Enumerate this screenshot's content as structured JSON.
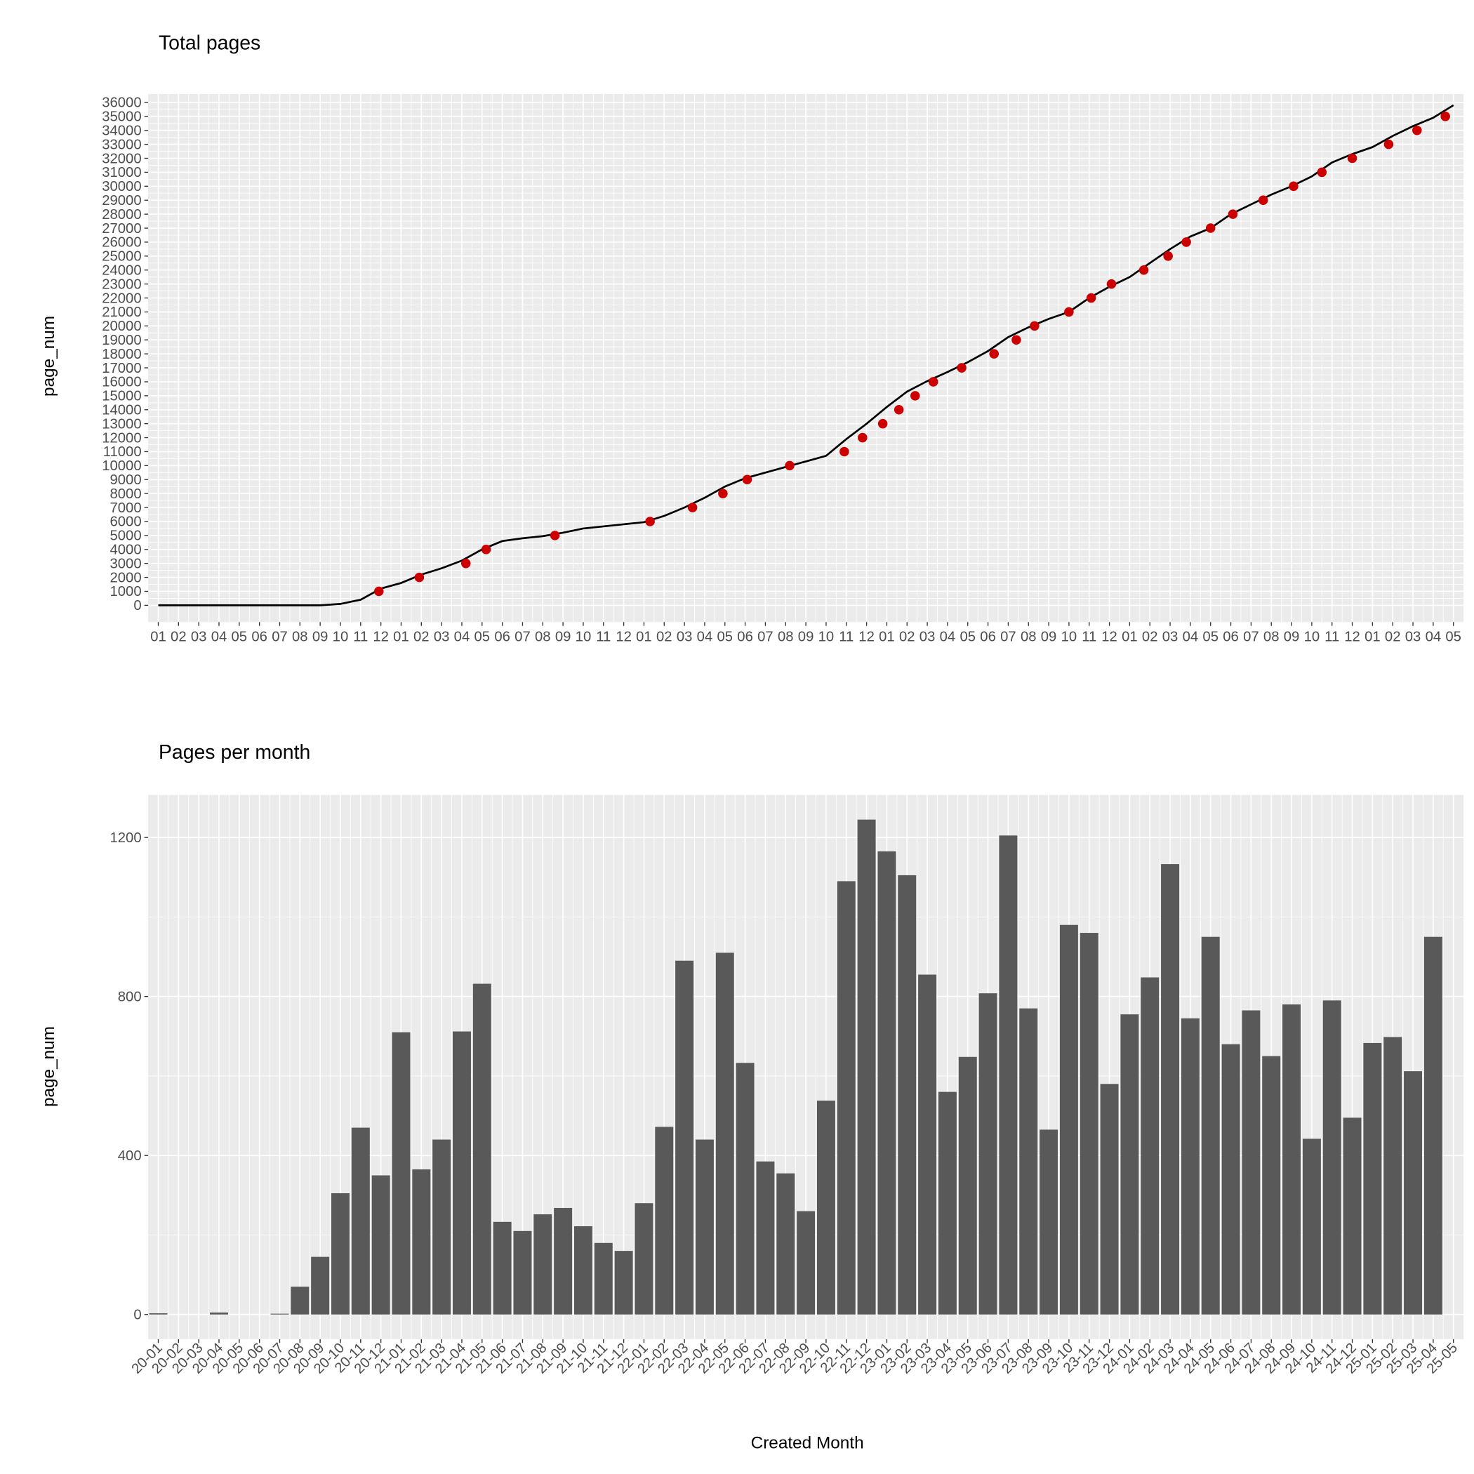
{
  "chart_data": [
    {
      "type": "line",
      "title": "Total pages",
      "y_label": "page_num",
      "color": "#000000",
      "x": [
        0,
        1,
        2,
        3,
        4,
        5,
        6,
        7,
        8,
        9,
        10,
        11,
        12,
        13,
        14,
        15,
        16,
        17,
        18,
        19,
        20,
        21,
        22,
        23,
        24,
        25,
        26,
        27,
        28,
        29,
        30,
        31,
        32,
        33,
        34,
        35,
        36,
        37,
        38,
        39,
        40,
        41,
        42,
        43,
        44,
        45,
        46,
        47,
        48,
        49,
        50,
        51,
        52,
        53,
        54,
        55,
        56,
        57,
        58,
        59,
        60,
        61,
        62,
        63,
        64
      ],
      "values": [
        0,
        0,
        0,
        0,
        0,
        0,
        0,
        0,
        0,
        100,
        400,
        1200,
        1600,
        2200,
        2650,
        3200,
        4000,
        4600,
        4800,
        4950,
        5200,
        5500,
        5650,
        5800,
        5950,
        6400,
        7000,
        7700,
        8500,
        9100,
        9500,
        9900,
        10300,
        10700,
        11900,
        13000,
        14200,
        15300,
        16050,
        16700,
        17400,
        18200,
        19200,
        19900,
        20500,
        21000,
        22000,
        22800,
        23500,
        24500,
        25500,
        26400,
        27000,
        28000,
        28700,
        29400,
        30000,
        30700,
        31700,
        32300,
        32800,
        33600,
        34300,
        34900,
        35800
      ],
      "points": {
        "color": "#cc0000",
        "x": [
          10.9,
          12.9,
          15.2,
          16.2,
          19.6,
          24.3,
          26.4,
          27.9,
          29.1,
          31.2,
          33.9,
          34.8,
          35.8,
          36.6,
          37.4,
          38.3,
          39.7,
          41.3,
          42.4,
          43.3,
          45.0,
          46.1,
          47.1,
          48.7,
          49.9,
          50.8,
          52.0,
          53.1,
          54.6,
          56.1,
          57.5,
          59.0,
          60.8,
          62.2,
          63.6
        ],
        "values": [
          1000,
          2000,
          3000,
          4000,
          5000,
          6000,
          7000,
          8000,
          9000,
          10000,
          11000,
          12000,
          13000,
          14000,
          15000,
          16000,
          17000,
          18000,
          19000,
          20000,
          21000,
          22000,
          23000,
          24000,
          25000,
          26000,
          27000,
          28000,
          29000,
          30000,
          31000,
          32000,
          33000,
          34000,
          35000
        ]
      },
      "xlim": [
        -0.5,
        64.5
      ],
      "xticks": [
        {
          "value": 0,
          "label": "01"
        },
        {
          "value": 1,
          "label": "02"
        },
        {
          "value": 2,
          "label": "03"
        },
        {
          "value": 3,
          "label": "04"
        },
        {
          "value": 4,
          "label": "05"
        },
        {
          "value": 5,
          "label": "06"
        },
        {
          "value": 6,
          "label": "07"
        },
        {
          "value": 7,
          "label": "08"
        },
        {
          "value": 8,
          "label": "09"
        },
        {
          "value": 9,
          "label": "10"
        },
        {
          "value": 10,
          "label": "11"
        },
        {
          "value": 11,
          "label": "12"
        },
        {
          "value": 12,
          "label": "01"
        },
        {
          "value": 13,
          "label": "02"
        },
        {
          "value": 14,
          "label": "03"
        },
        {
          "value": 15,
          "label": "04"
        },
        {
          "value": 16,
          "label": "05"
        },
        {
          "value": 17,
          "label": "06"
        },
        {
          "value": 18,
          "label": "07"
        },
        {
          "value": 19,
          "label": "08"
        },
        {
          "value": 20,
          "label": "09"
        },
        {
          "value": 21,
          "label": "10"
        },
        {
          "value": 22,
          "label": "11"
        },
        {
          "value": 23,
          "label": "12"
        },
        {
          "value": 24,
          "label": "01"
        },
        {
          "value": 25,
          "label": "02"
        },
        {
          "value": 26,
          "label": "03"
        },
        {
          "value": 27,
          "label": "04"
        },
        {
          "value": 28,
          "label": "05"
        },
        {
          "value": 29,
          "label": "06"
        },
        {
          "value": 30,
          "label": "07"
        },
        {
          "value": 31,
          "label": "08"
        },
        {
          "value": 32,
          "label": "09"
        },
        {
          "value": 33,
          "label": "10"
        },
        {
          "value": 34,
          "label": "11"
        },
        {
          "value": 35,
          "label": "12"
        },
        {
          "value": 36,
          "label": "01"
        },
        {
          "value": 37,
          "label": "02"
        },
        {
          "value": 38,
          "label": "03"
        },
        {
          "value": 39,
          "label": "04"
        },
        {
          "value": 40,
          "label": "05"
        },
        {
          "value": 41,
          "label": "06"
        },
        {
          "value": 42,
          "label": "07"
        },
        {
          "value": 43,
          "label": "08"
        },
        {
          "value": 44,
          "label": "09"
        },
        {
          "value": 45,
          "label": "10"
        },
        {
          "value": 46,
          "label": "11"
        },
        {
          "value": 47,
          "label": "12"
        },
        {
          "value": 48,
          "label": "01"
        },
        {
          "value": 49,
          "label": "02"
        },
        {
          "value": 50,
          "label": "03"
        },
        {
          "value": 51,
          "label": "04"
        },
        {
          "value": 52,
          "label": "05"
        },
        {
          "value": 53,
          "label": "06"
        },
        {
          "value": 54,
          "label": "07"
        },
        {
          "value": 55,
          "label": "08"
        },
        {
          "value": 56,
          "label": "09"
        },
        {
          "value": 57,
          "label": "10"
        },
        {
          "value": 58,
          "label": "11"
        },
        {
          "value": 59,
          "label": "12"
        },
        {
          "value": 60,
          "label": "01"
        },
        {
          "value": 61,
          "label": "02"
        },
        {
          "value": 62,
          "label": "03"
        },
        {
          "value": 63,
          "label": "04"
        },
        {
          "value": 64,
          "label": "05"
        }
      ],
      "ylim": [
        -1200,
        36600
      ],
      "yticks": [
        0,
        1000,
        2000,
        3000,
        4000,
        5000,
        6000,
        7000,
        8000,
        9000,
        10000,
        11000,
        12000,
        13000,
        14000,
        15000,
        16000,
        17000,
        18000,
        19000,
        20000,
        21000,
        22000,
        23000,
        24000,
        25000,
        26000,
        27000,
        28000,
        29000,
        30000,
        31000,
        32000,
        33000,
        34000,
        35000,
        36000
      ],
      "grid": true
    },
    {
      "type": "bar",
      "title": "Pages per month",
      "x_label": "Created Month",
      "y_label": "page_num",
      "color": "#595959",
      "categories": [
        "20-01",
        "20-02",
        "20-03",
        "20-04",
        "20-05",
        "20-06",
        "20-07",
        "20-08",
        "20-09",
        "20-10",
        "20-11",
        "20-12",
        "21-01",
        "21-02",
        "21-03",
        "21-04",
        "21-05",
        "21-06",
        "21-07",
        "21-08",
        "21-09",
        "21-10",
        "21-11",
        "21-12",
        "22-01",
        "22-02",
        "22-03",
        "22-04",
        "22-05",
        "22-06",
        "22-07",
        "22-08",
        "22-09",
        "22-10",
        "22-11",
        "22-12",
        "23-01",
        "23-02",
        "23-03",
        "23-04",
        "23-05",
        "23-06",
        "23-07",
        "23-08",
        "23-09",
        "23-10",
        "23-11",
        "23-12",
        "24-01",
        "24-02",
        "24-03",
        "24-04",
        "24-05",
        "24-06",
        "24-07",
        "24-08",
        "24-09",
        "24-10",
        "24-11",
        "24-12",
        "25-01",
        "25-02",
        "25-03",
        "25-04",
        "25-05"
      ],
      "values": [
        3,
        0,
        0,
        5,
        0,
        0,
        2,
        70,
        145,
        305,
        470,
        350,
        710,
        365,
        440,
        712,
        832,
        233,
        210,
        252,
        268,
        222,
        180,
        160,
        280,
        472,
        890,
        440,
        910,
        633,
        385,
        355,
        260,
        538,
        1090,
        1245,
        1165,
        1105,
        855,
        560,
        648,
        808,
        1205,
        770,
        465,
        980,
        960,
        580,
        755,
        848,
        1133,
        745,
        950,
        680,
        765,
        650,
        780,
        442,
        790,
        495,
        683,
        698,
        612,
        950,
        null
      ],
      "ylim": [
        -62,
        1307
      ],
      "yticks": [
        0,
        400,
        800,
        1200
      ],
      "grid": true
    }
  ]
}
